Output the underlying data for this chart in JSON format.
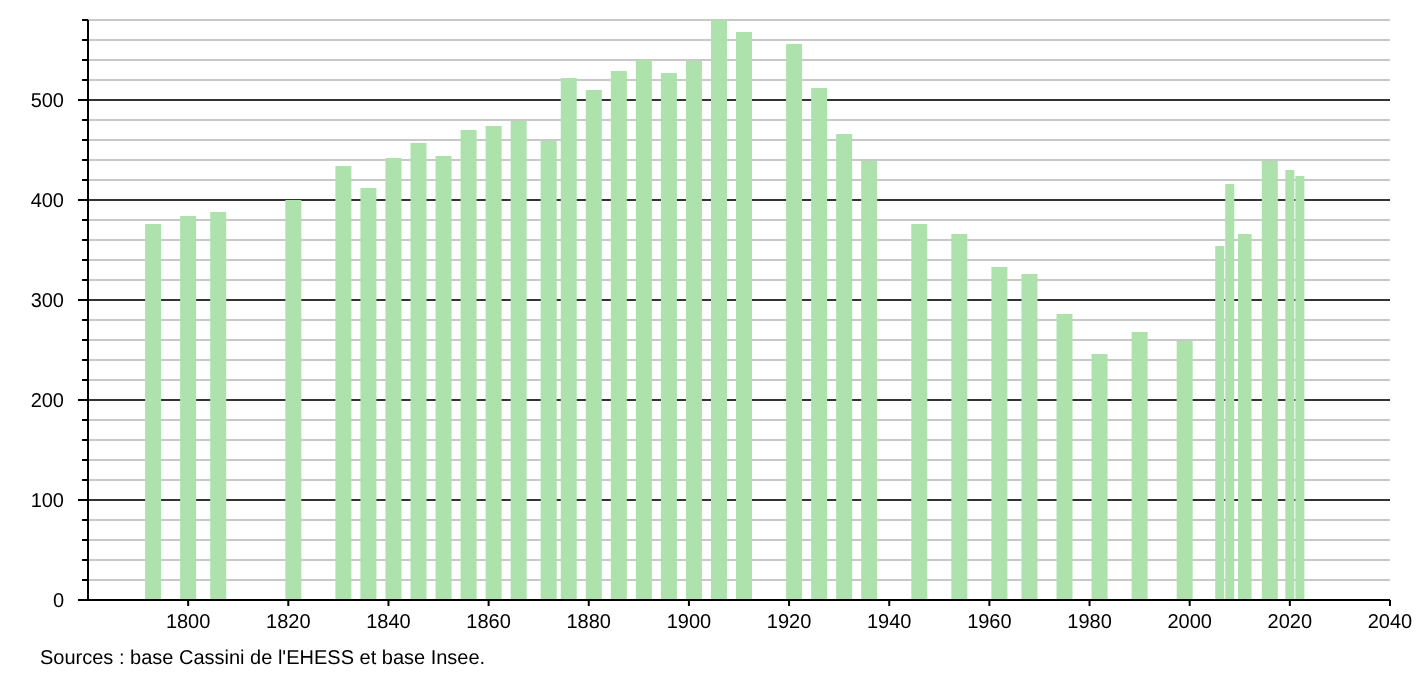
{
  "chart_data": {
    "type": "bar",
    "x": [
      1793,
      1800,
      1806,
      1821,
      1831,
      1836,
      1841,
      1846,
      1851,
      1856,
      1861,
      1866,
      1872,
      1876,
      1881,
      1886,
      1891,
      1896,
      1901,
      1906,
      1911,
      1921,
      1926,
      1931,
      1936,
      1946,
      1954,
      1962,
      1968,
      1975,
      1982,
      1990,
      1999,
      2006,
      2008,
      2011,
      2016,
      2020,
      2022
    ],
    "values": [
      376,
      384,
      388,
      400,
      434,
      412,
      442,
      457,
      444,
      470,
      474,
      479,
      459,
      522,
      510,
      529,
      540,
      527,
      539,
      580,
      568,
      556,
      512,
      466,
      439,
      376,
      366,
      333,
      326,
      286,
      246,
      268,
      259,
      354,
      416,
      366,
      439,
      430,
      424
    ],
    "color": "#ade2ac",
    "xlim": [
      1780,
      2040
    ],
    "xticks": [
      1800,
      1820,
      1840,
      1860,
      1880,
      1900,
      1920,
      1940,
      1960,
      1980,
      2000,
      2020,
      2040
    ],
    "ylim": [
      0,
      580
    ],
    "yticks": [
      0,
      {
        "value": 20,
        "label": null
      },
      {
        "value": 40,
        "label": null
      },
      {
        "value": 60,
        "label": null
      },
      {
        "value": 80,
        "label": null
      },
      100,
      {
        "value": 120,
        "label": null
      },
      {
        "value": 140,
        "label": null
      },
      {
        "value": 160,
        "label": null
      },
      {
        "value": 180,
        "label": null
      },
      200,
      {
        "value": 220,
        "label": null
      },
      {
        "value": 240,
        "label": null
      },
      {
        "value": 260,
        "label": null
      },
      {
        "value": 280,
        "label": null
      },
      300,
      {
        "value": 320,
        "label": null
      },
      {
        "value": 340,
        "label": null
      },
      {
        "value": 360,
        "label": null
      },
      {
        "value": 380,
        "label": null
      },
      400,
      {
        "value": 420,
        "label": null
      },
      {
        "value": 440,
        "label": null
      },
      {
        "value": 460,
        "label": null
      },
      {
        "value": 480,
        "label": null
      },
      500,
      {
        "value": 520,
        "label": null
      },
      {
        "value": 540,
        "label": null
      },
      {
        "value": 560,
        "label": null
      },
      {
        "value": 580,
        "label": null
      }
    ],
    "grid": true,
    "annotations": [
      "Sources : base Cassini de l'EHESS et base Insee."
    ]
  }
}
